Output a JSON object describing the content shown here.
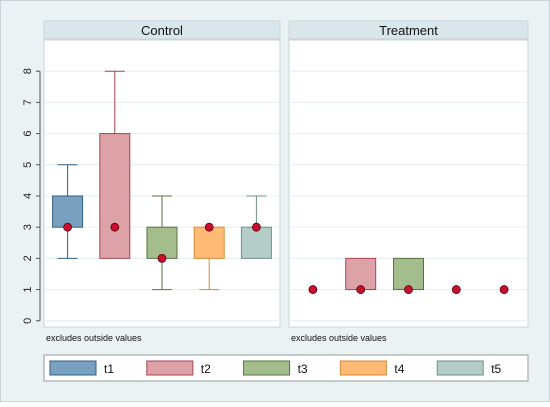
{
  "chart_data": {
    "type": "box",
    "panels": [
      "Control",
      "Treatment"
    ],
    "note": "excludes outside values",
    "yticks": [
      0,
      1,
      2,
      3,
      4,
      5,
      6,
      7,
      8
    ],
    "ylim": [
      -0.2,
      9.0
    ],
    "series": [
      {
        "name": "t1",
        "color": "#7aa0bf",
        "control": {
          "q1": 3,
          "q3": 4,
          "whisker_low": 2,
          "whisker_high": 5,
          "marker": 3
        },
        "treatment": {
          "q1": 1,
          "q3": 1,
          "whisker_low": 1,
          "whisker_high": 1,
          "marker": 1
        }
      },
      {
        "name": "t2",
        "color": "#dca2a7",
        "control": {
          "q1": 2,
          "q3": 6,
          "whisker_low": 2,
          "whisker_high": 8,
          "marker": 3
        },
        "treatment": {
          "q1": 1,
          "q3": 2,
          "whisker_low": 1,
          "whisker_high": 2,
          "marker": 1
        }
      },
      {
        "name": "t3",
        "color": "#a4bd8d",
        "control": {
          "q1": 2,
          "q3": 3,
          "whisker_low": 1,
          "whisker_high": 4,
          "marker": 2
        },
        "treatment": {
          "q1": 1,
          "q3": 2,
          "whisker_low": 1,
          "whisker_high": 2,
          "marker": 1
        }
      },
      {
        "name": "t4",
        "color": "#ffba76",
        "control": {
          "q1": 2,
          "q3": 3,
          "whisker_low": 1,
          "whisker_high": 3,
          "marker": 3
        },
        "treatment": {
          "q1": 1,
          "q3": 1,
          "whisker_low": 1,
          "whisker_high": 1,
          "marker": 1
        }
      },
      {
        "name": "t5",
        "color": "#b4cdc8",
        "control": {
          "q1": 2,
          "q3": 3,
          "whisker_low": 2,
          "whisker_high": 4,
          "marker": 3
        },
        "treatment": {
          "q1": 1,
          "q3": 1,
          "whisker_low": 1,
          "whisker_high": 1,
          "marker": 1
        }
      }
    ],
    "marker_color": "#c8102e",
    "header_color": "#d9e6eb",
    "grid": true,
    "legend_position": "bottom"
  }
}
